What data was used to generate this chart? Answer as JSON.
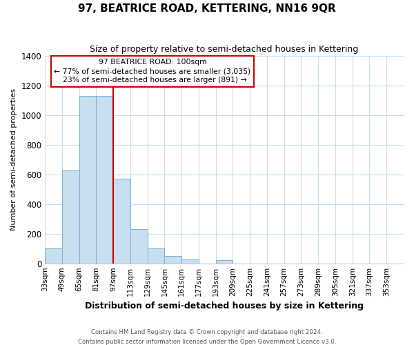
{
  "title": "97, BEATRICE ROAD, KETTERING, NN16 9QR",
  "subtitle": "Size of property relative to semi-detached houses in Kettering",
  "xlabel": "Distribution of semi-detached houses by size in Kettering",
  "ylabel": "Number of semi-detached properties",
  "bin_labels": [
    "33sqm",
    "49sqm",
    "65sqm",
    "81sqm",
    "97sqm",
    "113sqm",
    "129sqm",
    "145sqm",
    "161sqm",
    "177sqm",
    "193sqm",
    "209sqm",
    "225sqm",
    "241sqm",
    "257sqm",
    "273sqm",
    "289sqm",
    "305sqm",
    "321sqm",
    "337sqm",
    "353sqm"
  ],
  "bin_edges": [
    33,
    49,
    65,
    81,
    97,
    113,
    129,
    145,
    161,
    177,
    193,
    209,
    225,
    241,
    257,
    273,
    289,
    305,
    321,
    337,
    353
  ],
  "bar_heights": [
    100,
    625,
    1130,
    1130,
    570,
    230,
    100,
    50,
    25,
    0,
    20,
    0,
    0,
    0,
    0,
    0,
    0,
    0,
    0,
    0
  ],
  "property_sqm_label": "100sqm",
  "property_name": "97 BEATRICE ROAD",
  "pct_smaller": 77,
  "count_smaller": 3035,
  "pct_larger": 23,
  "count_larger": 891,
  "bar_color": "#c8dff0",
  "bar_edge_color": "#7aafd4",
  "vline_color": "#cc0000",
  "annotation_box_edgecolor": "#cc0000",
  "ylim": [
    0,
    1400
  ],
  "yticks": [
    0,
    200,
    400,
    600,
    800,
    1000,
    1200,
    1400
  ],
  "footer_line1": "Contains HM Land Registry data © Crown copyright and database right 2024.",
  "footer_line2": "Contains public sector information licensed under the Open Government Licence v3.0.",
  "bin_width": 16,
  "grid_color": "#c5dff0",
  "vline_x": 97
}
